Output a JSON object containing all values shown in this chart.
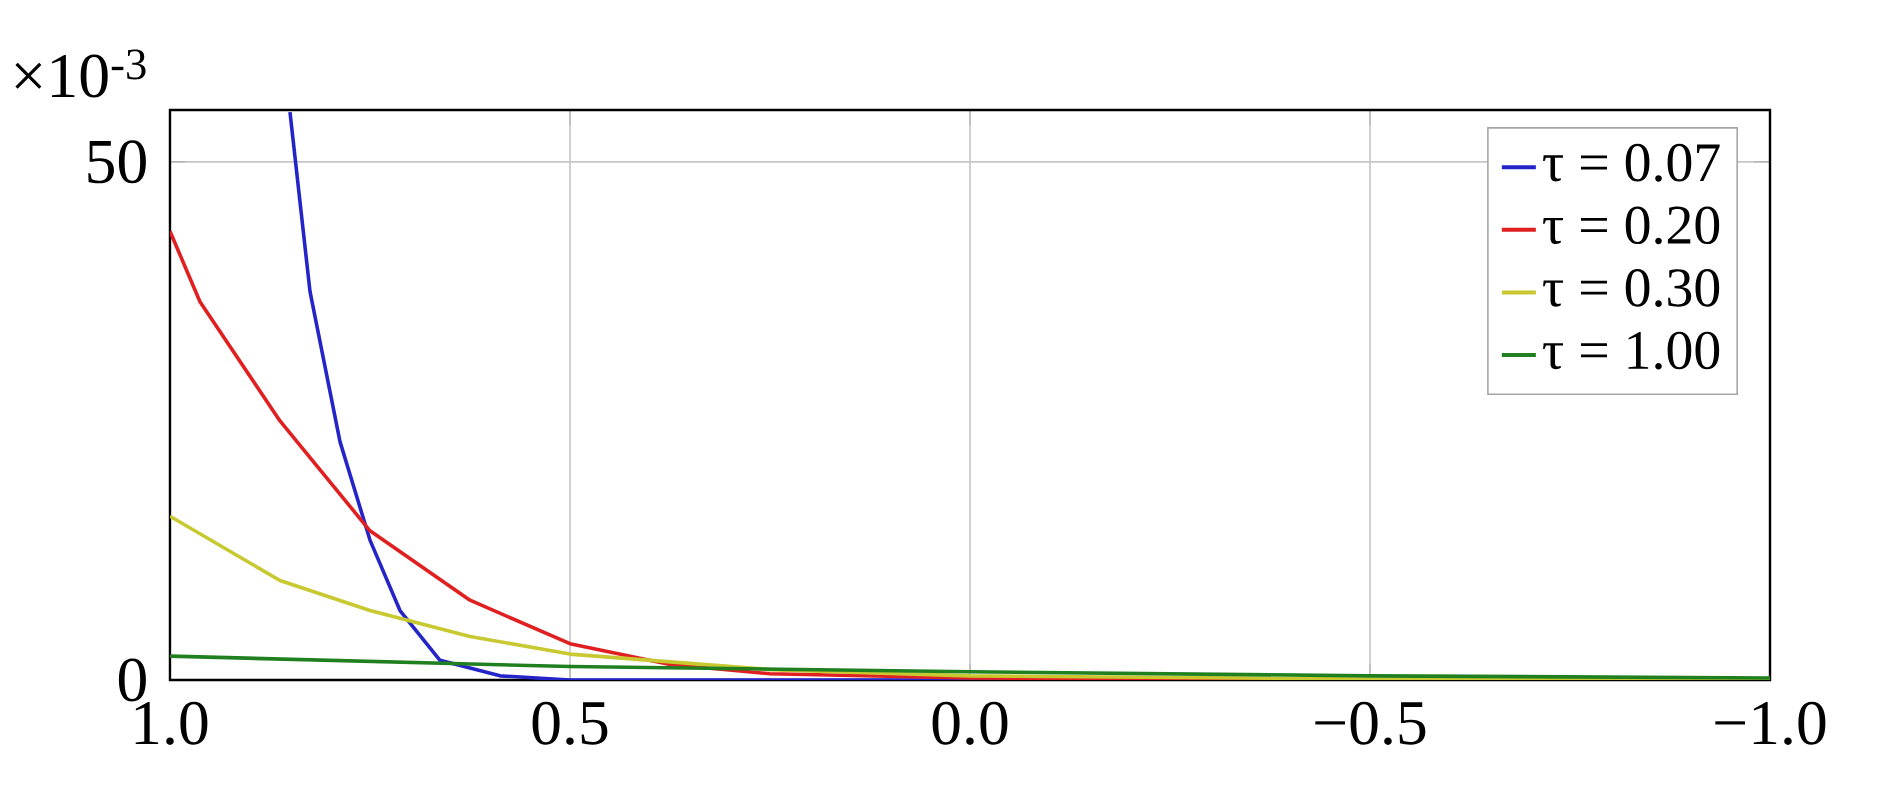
{
  "chart_data": {
    "type": "line",
    "annotations": [
      "×10$^{-3}$"
    ],
    "xlim": [
      1.0,
      -1.0
    ],
    "ylim": [
      0,
      55
    ],
    "xticks": [
      {
        "value": 1.0,
        "label": "1.0"
      },
      {
        "value": 0.5,
        "label": "0.5"
      },
      {
        "value": 0.0,
        "label": "0.0"
      },
      {
        "value": -0.5,
        "label": "−0.5"
      },
      {
        "value": -1.0,
        "label": "−1.0"
      }
    ],
    "yticks": [
      0,
      50
    ],
    "grid": true,
    "legend": "top right",
    "marker": "none",
    "line_style": "solid",
    "series": [
      {
        "name": "τ = 0.07",
        "color": "#2424c8",
        "x": [
          0.85,
          0.825,
          0.7875,
          0.75,
          0.7125,
          0.6625,
          0.5875,
          0.5,
          0.0,
          -0.5,
          -1.0
        ],
        "values": [
          54.8,
          37.5,
          23,
          13.5,
          6.7,
          1.9,
          0.4,
          0,
          0,
          0,
          0
        ]
      },
      {
        "name": "τ = 0.20",
        "color": "#e02020",
        "x": [
          1.0,
          0.9625,
          0.8625,
          0.75,
          0.625,
          0.5,
          0.375,
          0.25,
          0.0,
          -0.5,
          -1.0
        ],
        "values": [
          43.3,
          36.5,
          25,
          14.4,
          7.7,
          3.5,
          1.5,
          0.6,
          0.2,
          0,
          0
        ]
      },
      {
        "name": "τ = 0.30",
        "color": "#c8c830",
        "x": [
          1.0,
          0.8625,
          0.75,
          0.625,
          0.5,
          0.25,
          0.0,
          -0.5,
          -1.0
        ],
        "values": [
          15.8,
          9.6,
          6.7,
          4.2,
          2.5,
          1.0,
          0.4,
          0.1,
          0
        ]
      },
      {
        "name": "τ = 1.00",
        "color": "#208020",
        "x": [
          1.0,
          0.5,
          0.0,
          -0.5,
          -1.0
        ],
        "values": [
          2.3,
          1.3,
          0.8,
          0.4,
          0.2
        ]
      }
    ]
  }
}
